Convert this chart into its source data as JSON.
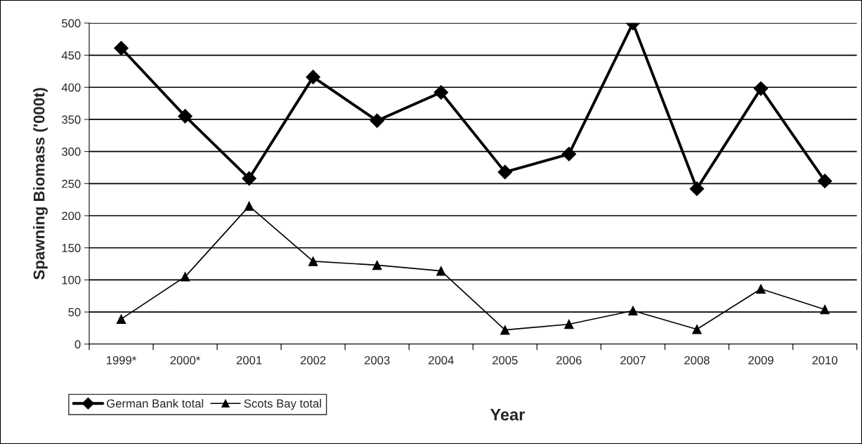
{
  "chart_data": {
    "type": "line",
    "xlabel": "Year",
    "ylabel": "Spawning Biomass ('000t)",
    "categories": [
      "1999*",
      "2000*",
      "2001",
      "2002",
      "2003",
      "2004",
      "2005",
      "2006",
      "2007",
      "2008",
      "2009",
      "2010"
    ],
    "series": [
      {
        "name": "German Bank total",
        "color": "#000000",
        "marker": "diamond",
        "values": [
          461,
          355,
          258,
          416,
          348,
          392,
          268,
          296,
          500,
          242,
          398,
          254
        ]
      },
      {
        "name": "Scots Bay total",
        "color": "#000000",
        "marker": "triangle",
        "values": [
          39,
          105,
          215,
          129,
          123,
          114,
          22,
          31,
          52,
          23,
          86,
          54
        ]
      }
    ],
    "ylim": [
      0,
      500
    ],
    "yticks": [
      0,
      50,
      100,
      150,
      200,
      250,
      300,
      350,
      400,
      450,
      500
    ],
    "grid": "y",
    "legend": "bottom left",
    "line_style": "solid"
  }
}
